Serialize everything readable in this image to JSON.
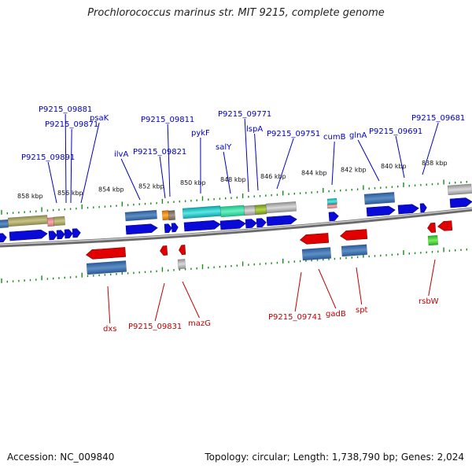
{
  "title": "Prochlorococcus marinus str. MIT 9215, complete genome",
  "footer": {
    "accession": "Accession: NC_009840",
    "topology": "Topology: circular; Length: 1,738,790 bp; Genes: 2,024"
  },
  "colors": {
    "forward_gene": "#0a0ad8",
    "reverse_gene": "#e00000",
    "tick": "#1a8a1a",
    "backbone": "#8a8a8a",
    "upper_label": "#0000c0",
    "lower_label": "#c00000"
  },
  "scale_labels": [
    "858 kbp",
    "856 kbp",
    "854 kbp",
    "852 kbp",
    "850 kbp",
    "848 kbp",
    "846 kbp",
    "844 kbp",
    "842 kbp",
    "840 kbp",
    "838 kbp"
  ],
  "upper_genes": [
    "P9215_09881",
    "P9215_09871",
    "psaK",
    "P9215_09891",
    "ilvA",
    "P9215_09811",
    "P9215_09821",
    "pykF",
    "P9215_09771",
    "salY",
    "lspA",
    "P9215_09751",
    "cumB",
    "glnA",
    "P9215_09691",
    "P9215_09681"
  ],
  "lower_genes": [
    "dxs",
    "P9215_09831",
    "mazG",
    "P9215_09741",
    "gadB",
    "spt",
    "rsbW"
  ]
}
